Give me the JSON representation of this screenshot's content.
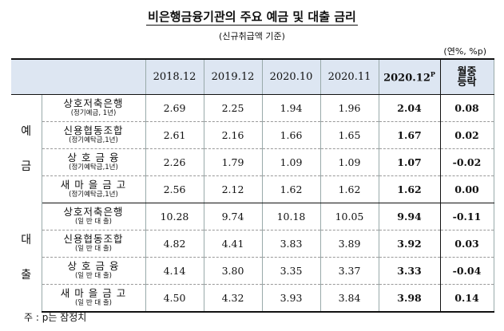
{
  "title": "비은행금융기관의 주요 예금 및 대출 금리",
  "subtitle": "(신규취급액 기준)",
  "unit": "(연%, %p)",
  "headers": {
    "cols": [
      "2018.12",
      "2019.12",
      "2020.10",
      "2020.11"
    ],
    "current": "2020.12",
    "current_sup": "P",
    "change_line1": "월중",
    "change_line2": "등락"
  },
  "groups": [
    {
      "label_top": "예",
      "label_bottom": "금",
      "rows": [
        {
          "name": "상호저축은행",
          "sub": "(정기예금, 1년)",
          "v1": "2.69",
          "v2": "2.25",
          "v3": "1.94",
          "v4": "1.96",
          "cur": "2.04",
          "chg": "0.08"
        },
        {
          "name": "신용협동조합",
          "sub": "(정기예탁금,1년)",
          "v1": "2.61",
          "v2": "2.16",
          "v3": "1.66",
          "v4": "1.65",
          "cur": "1.67",
          "chg": "0.02"
        },
        {
          "name": "상 호 금 융",
          "sub": "(정기예탁금,1년)",
          "v1": "2.26",
          "v2": "1.79",
          "v3": "1.09",
          "v4": "1.09",
          "cur": "1.07",
          "chg": "-0.02"
        },
        {
          "name": "새 마 을 금 고",
          "sub": "(정기예탁금,1년)",
          "v1": "2.56",
          "v2": "2.12",
          "v3": "1.62",
          "v4": "1.62",
          "cur": "1.62",
          "chg": "0.00"
        }
      ]
    },
    {
      "label_top": "대",
      "label_bottom": "출",
      "rows": [
        {
          "name": "상호저축은행",
          "sub": "(일 반 대 출)",
          "v1": "10.28",
          "v2": "9.74",
          "v3": "10.18",
          "v4": "10.05",
          "cur": "9.94",
          "chg": "-0.11"
        },
        {
          "name": "신용협동조합",
          "sub": "(일 반 대 출)",
          "v1": "4.82",
          "v2": "4.41",
          "v3": "3.83",
          "v4": "3.89",
          "cur": "3.92",
          "chg": "0.03"
        },
        {
          "name": "상 호 금 융",
          "sub": "(일 반 대 출)",
          "v1": "4.14",
          "v2": "3.80",
          "v3": "3.35",
          "v4": "3.37",
          "cur": "3.33",
          "chg": "-0.04"
        },
        {
          "name": "새 마 을 금 고",
          "sub": "(일 반 대 출)",
          "v1": "4.50",
          "v2": "4.32",
          "v3": "3.93",
          "v4": "3.84",
          "cur": "3.98",
          "chg": "0.14"
        }
      ]
    }
  ],
  "note": "주 : p는 잠정치"
}
